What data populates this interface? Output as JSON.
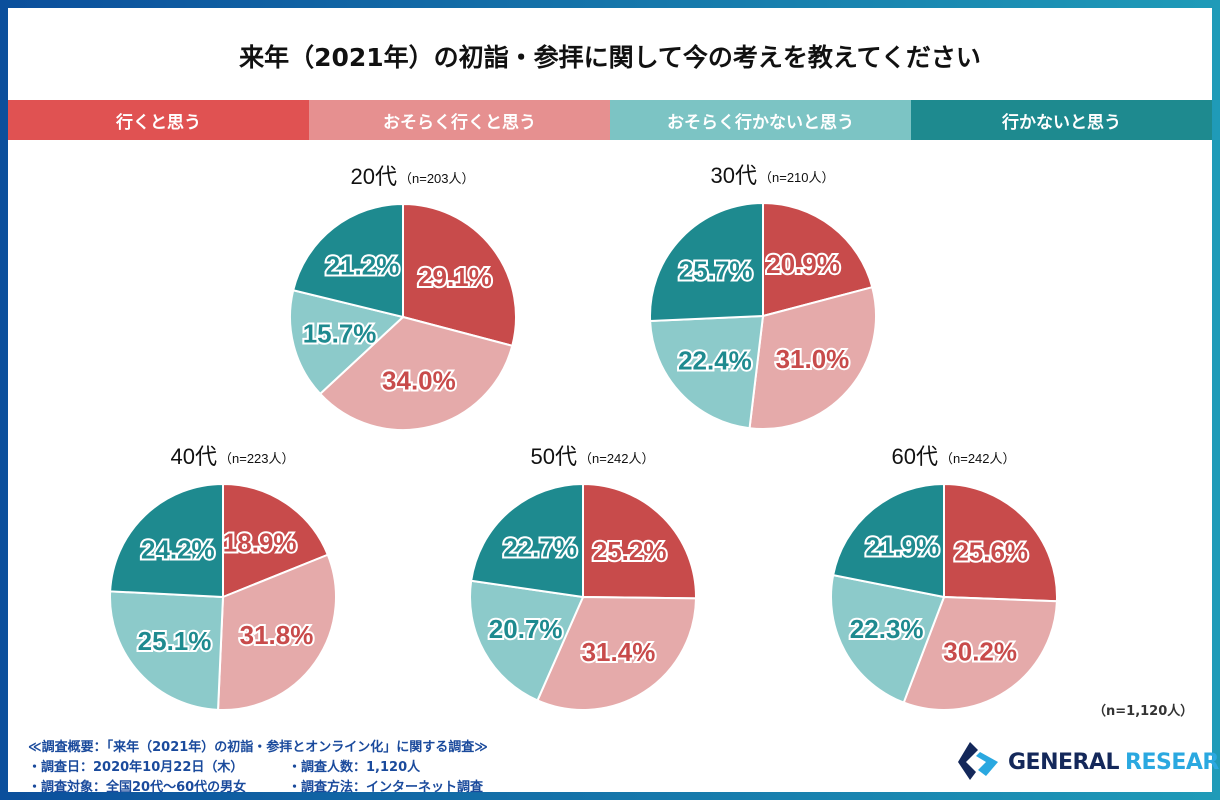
{
  "title": "来年（2021年）の初詣・参拝に関して今の考えを教えてください",
  "colors": {
    "行くと思う": "#c84b4b",
    "おそらく行くと思う": "#e5aaaa",
    "おそらく行かないと思う": "#8ccaca",
    "行かないと思う": "#1e8a8f"
  },
  "legend_colors": [
    "#e05252",
    "#e69090",
    "#7cc4c4",
    "#1e8a8f"
  ],
  "chart_data": {
    "type": "pie",
    "title": "来年（2021年）の初詣・参拝に関して今の考えを教えてください",
    "legend": [
      "行くと思う",
      "おそらく行くと思う",
      "おそらく行かないと思う",
      "行かないと思う"
    ],
    "legend_placement": "top",
    "pies": [
      {
        "label": "20代",
        "n": "（n=203人）",
        "values": [
          29.1,
          34.0,
          15.7,
          21.2
        ]
      },
      {
        "label": "30代",
        "n": "（n=210人）",
        "values": [
          20.9,
          31.0,
          22.4,
          25.7
        ]
      },
      {
        "label": "40代",
        "n": "（n=223人）",
        "values": [
          18.9,
          31.8,
          25.1,
          24.2
        ]
      },
      {
        "label": "50代",
        "n": "（n=242人）",
        "values": [
          25.2,
          31.4,
          20.7,
          22.7
        ]
      },
      {
        "label": "60代",
        "n": "（n=242人）",
        "values": [
          25.6,
          30.2,
          22.3,
          21.9
        ]
      }
    ]
  },
  "total": "（n=1,120人）",
  "footer": {
    "heading": "≪調査概要：「来年（2021年）の初詣・参拝とオンライン化」に関する調査≫",
    "date": "・調査日：2020年10月22日（木）",
    "count": "・調査人数：1,120人",
    "target": "・調査対象：全国20代～60代の男女",
    "method": "・調査方法：インターネット調査"
  },
  "logo": {
    "part1": "GENERAL",
    "part2": "RESEARCH"
  }
}
